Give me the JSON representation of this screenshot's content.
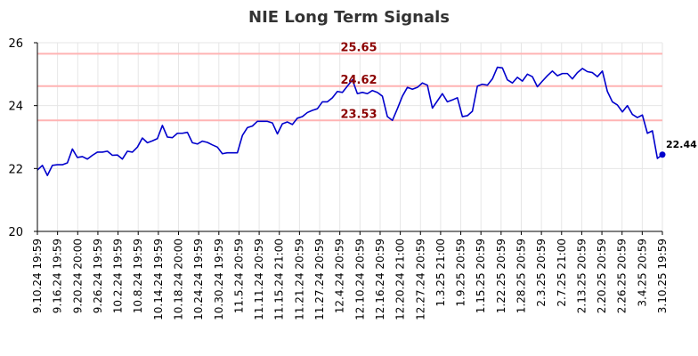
{
  "colors": {
    "line": "#0000cc",
    "hline": "#ffb3b3",
    "hlabel": "#8b0000",
    "grid": "#e6e6e6",
    "background": "#ffffff"
  },
  "chart_data": {
    "type": "line",
    "title": "NIE Long Term Signals",
    "xlabel": "",
    "ylabel": "",
    "ylim": [
      20,
      26
    ],
    "yticks": [
      20,
      22,
      24,
      26
    ],
    "grid": true,
    "x_tick_labels": [
      "9.10.24 19:59",
      "9.16.24 19:59",
      "9.20.24 20:00",
      "9.26.24 19:59",
      "10.2.24 19:59",
      "10.8.24 19:59",
      "10.14.24 19:59",
      "10.18.24 20:00",
      "10.24.24 19:59",
      "10.30.24 19:59",
      "11.5.24 20:59",
      "11.11.24 20:59",
      "11.15.24 21:00",
      "11.21.24 20:59",
      "11.27.24 20:59",
      "12.4.24 20:59",
      "12.10.24 20:59",
      "12.16.24 20:59",
      "12.20.24 21:00",
      "12.27.24 20:59",
      "1.3.25 21:00",
      "1.9.25 20:59",
      "1.15.25 20:59",
      "1.22.25 20:59",
      "1.28.25 20:59",
      "2.3.25 20:59",
      "2.7.25 21:00",
      "2.13.25 20:59",
      "2.20.25 20:59",
      "2.26.25 20:59",
      "3.4.25 20:59",
      "3.10.25 19:59"
    ],
    "series": [
      {
        "values": [
          21.95,
          22.1,
          21.78,
          22.1,
          22.12,
          22.12,
          22.18,
          22.62,
          22.35,
          22.38,
          22.3,
          22.42,
          22.52,
          22.52,
          22.55,
          22.42,
          22.43,
          22.3,
          22.55,
          22.52,
          22.68,
          22.97,
          22.82,
          22.88,
          22.95,
          23.37,
          23.0,
          22.98,
          23.12,
          23.12,
          23.15,
          22.82,
          22.78,
          22.87,
          22.83,
          22.75,
          22.68,
          22.47,
          22.5,
          22.5,
          22.5,
          23.05,
          23.3,
          23.35,
          23.5,
          23.5,
          23.5,
          23.45,
          23.1,
          23.42,
          23.48,
          23.4,
          23.6,
          23.65,
          23.78,
          23.85,
          23.9,
          24.12,
          24.12,
          24.25,
          24.45,
          24.42,
          24.62,
          24.82,
          24.38,
          24.42,
          24.38,
          24.48,
          24.42,
          24.3,
          23.65,
          23.53,
          23.9,
          24.3,
          24.58,
          24.52,
          24.58,
          24.72,
          24.65,
          23.92,
          24.15,
          24.38,
          24.12,
          24.18,
          24.25,
          23.65,
          23.68,
          23.82,
          24.62,
          24.68,
          24.65,
          24.85,
          25.22,
          25.2,
          24.82,
          24.72,
          24.9,
          24.78,
          25.0,
          24.92,
          24.6,
          24.78,
          24.95,
          25.1,
          24.95,
          25.02,
          25.02,
          24.85,
          25.05,
          25.18,
          25.08,
          25.05,
          24.92,
          25.1,
          24.45,
          24.12,
          24.02,
          23.8,
          24.0,
          23.72,
          23.62,
          23.7,
          23.12,
          23.2,
          22.32,
          22.44
        ]
      }
    ],
    "hlines": [
      {
        "value": 25.65,
        "label": "25.65"
      },
      {
        "value": 24.62,
        "label": "24.62"
      },
      {
        "value": 23.53,
        "label": "23.53"
      }
    ],
    "last_value": 22.44,
    "last_label": "22.44"
  }
}
